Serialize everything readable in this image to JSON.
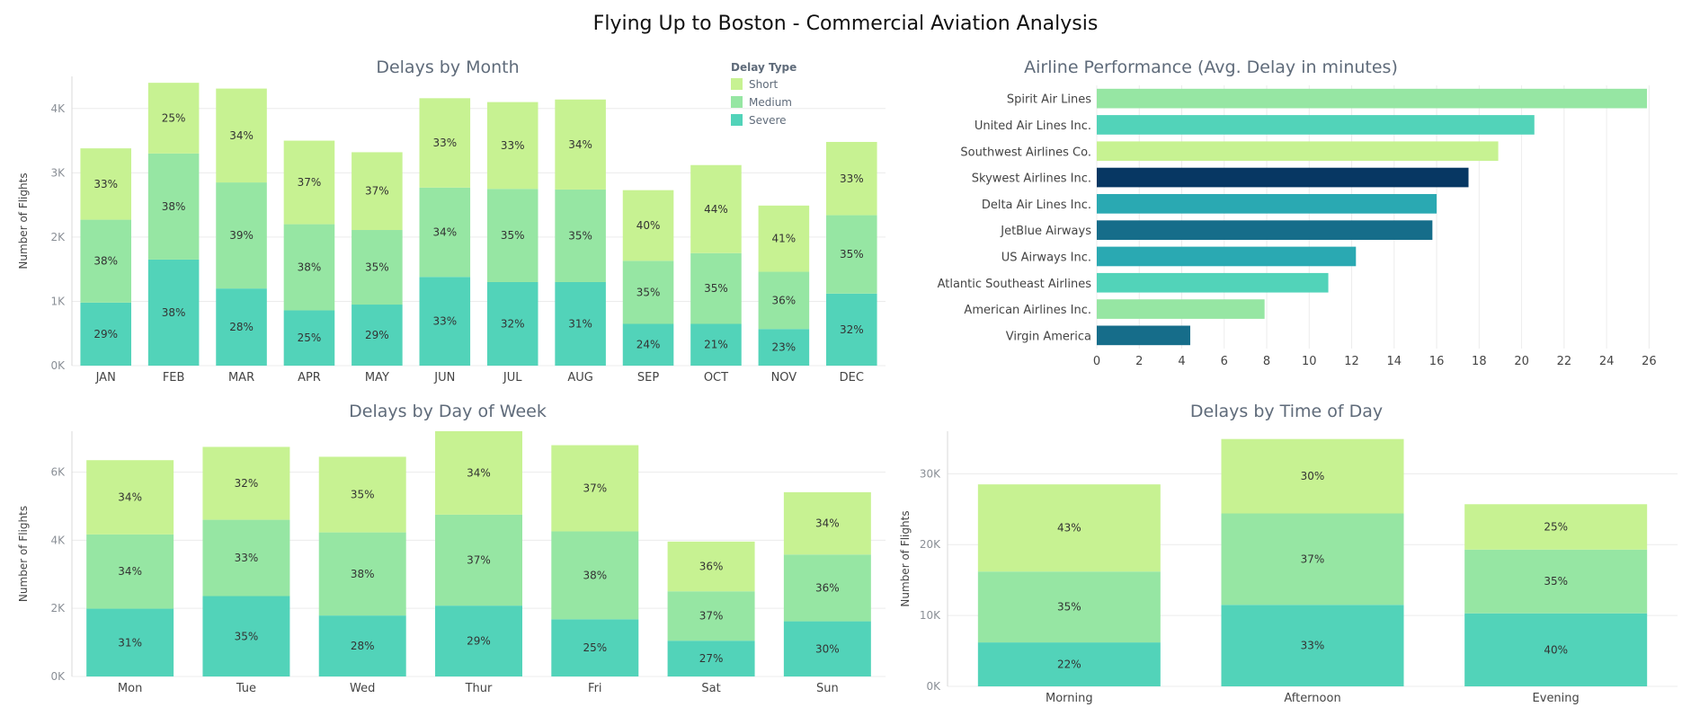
{
  "dashboard": {
    "title": "Flying Up to Boston - Commercial Aviation Analysis"
  },
  "legend": {
    "title": "Delay Type",
    "items": [
      {
        "name": "Short",
        "color": "#c7f292"
      },
      {
        "name": "Medium",
        "color": "#96e6a3"
      },
      {
        "name": "Severe",
        "color": "#52d3b9"
      }
    ]
  },
  "chart_data": [
    {
      "id": "month",
      "type": "bar",
      "stacked": true,
      "title": "Delays by Month",
      "xlabel": "",
      "ylabel": "Number of Flights",
      "ylim": [
        0,
        4500
      ],
      "yticks": [
        0,
        1000,
        2000,
        3000,
        4000
      ],
      "ytick_labels": [
        "0K",
        "1K",
        "2K",
        "3K",
        "4K"
      ],
      "categories": [
        "JAN",
        "FEB",
        "MAR",
        "APR",
        "MAY",
        "JUN",
        "JUL",
        "AUG",
        "SEP",
        "OCT",
        "NOV",
        "DEC"
      ],
      "series": [
        {
          "name": "Severe",
          "values": [
            980,
            1650,
            1200,
            860,
            950,
            1380,
            1300,
            1300,
            650,
            650,
            570,
            1120
          ],
          "labels": [
            "29%",
            "38%",
            "28%",
            "25%",
            "29%",
            "33%",
            "32%",
            "31%",
            "24%",
            "21%",
            "23%",
            "32%"
          ]
        },
        {
          "name": "Medium",
          "values": [
            1290,
            1650,
            1650,
            1340,
            1160,
            1390,
            1450,
            1440,
            980,
            1100,
            890,
            1220
          ],
          "labels": [
            "38%",
            "38%",
            "39%",
            "38%",
            "35%",
            "34%",
            "35%",
            "35%",
            "35%",
            "35%",
            "36%",
            "35%"
          ]
        },
        {
          "name": "Short",
          "values": [
            1110,
            1100,
            1460,
            1300,
            1210,
            1390,
            1350,
            1400,
            1100,
            1370,
            1030,
            1140
          ],
          "labels": [
            "33%",
            "25%",
            "34%",
            "37%",
            "37%",
            "33%",
            "33%",
            "34%",
            "40%",
            "44%",
            "41%",
            "33%"
          ]
        }
      ]
    },
    {
      "id": "airline",
      "type": "bar",
      "orientation": "horizontal",
      "title": "Airline Performance  (Avg. Delay in minutes)",
      "xlabel": "",
      "ylabel": "",
      "xlim": [
        0,
        27
      ],
      "xticks": [
        0,
        2,
        4,
        6,
        8,
        10,
        12,
        14,
        16,
        18,
        20,
        22,
        24,
        26
      ],
      "categories": [
        "Spirit Air Lines",
        "United Air Lines Inc.",
        "Southwest Airlines Co.",
        "Skywest Airlines Inc.",
        "Delta Air Lines Inc.",
        "JetBlue Airways",
        "US Airways Inc.",
        "Atlantic Southeast Airlines",
        "American Airlines Inc.",
        "Virgin America"
      ],
      "values": [
        25.9,
        20.6,
        18.9,
        17.5,
        16.0,
        15.8,
        12.2,
        10.9,
        7.9,
        4.4
      ],
      "colors": [
        "#96e6a3",
        "#52d3b9",
        "#c7f292",
        "#073763",
        "#2aa9b2",
        "#166d8a",
        "#2aa9b2",
        "#52d3b9",
        "#96e6a3",
        "#166d8a"
      ]
    },
    {
      "id": "dow",
      "type": "bar",
      "stacked": true,
      "title": "Delays by Day of Week",
      "xlabel": "",
      "ylabel": "Number of Flights",
      "ylim": [
        0,
        7200
      ],
      "yticks": [
        0,
        2000,
        4000,
        6000
      ],
      "ytick_labels": [
        "0K",
        "2K",
        "4K",
        "6K"
      ],
      "categories": [
        "Mon",
        "Tue",
        "Wed",
        "Thur",
        "Fri",
        "Sat",
        "Sun"
      ],
      "series": [
        {
          "name": "Severe",
          "values": [
            1990,
            2360,
            1790,
            2080,
            1680,
            1050,
            1620
          ],
          "labels": [
            "31%",
            "35%",
            "28%",
            "29%",
            "25%",
            "27%",
            "30%"
          ]
        },
        {
          "name": "Medium",
          "values": [
            2180,
            2240,
            2440,
            2670,
            2580,
            1450,
            1960
          ],
          "labels": [
            "34%",
            "33%",
            "38%",
            "37%",
            "38%",
            "37%",
            "36%"
          ]
        },
        {
          "name": "Short",
          "values": [
            2180,
            2140,
            2220,
            2450,
            2530,
            1460,
            1830
          ],
          "labels": [
            "34%",
            "32%",
            "35%",
            "34%",
            "37%",
            "36%",
            "34%"
          ]
        }
      ]
    },
    {
      "id": "tod",
      "type": "bar",
      "stacked": true,
      "title": "Delays by Time of Day",
      "xlabel": "",
      "ylabel": "Number of Flights",
      "ylim": [
        0,
        36000
      ],
      "yticks": [
        0,
        10000,
        20000,
        30000
      ],
      "ytick_labels": [
        "0K",
        "10K",
        "20K",
        "30K"
      ],
      "categories": [
        "Morning",
        "Afternoon",
        "Evening"
      ],
      "series": [
        {
          "name": "Severe",
          "values": [
            6200,
            11500,
            10300
          ],
          "labels": [
            "22%",
            "33%",
            "40%"
          ]
        },
        {
          "name": "Medium",
          "values": [
            10000,
            12900,
            9000
          ],
          "labels": [
            "35%",
            "37%",
            "35%"
          ]
        },
        {
          "name": "Short",
          "values": [
            12300,
            10500,
            6400
          ],
          "labels": [
            "43%",
            "30%",
            "25%"
          ]
        }
      ]
    }
  ]
}
